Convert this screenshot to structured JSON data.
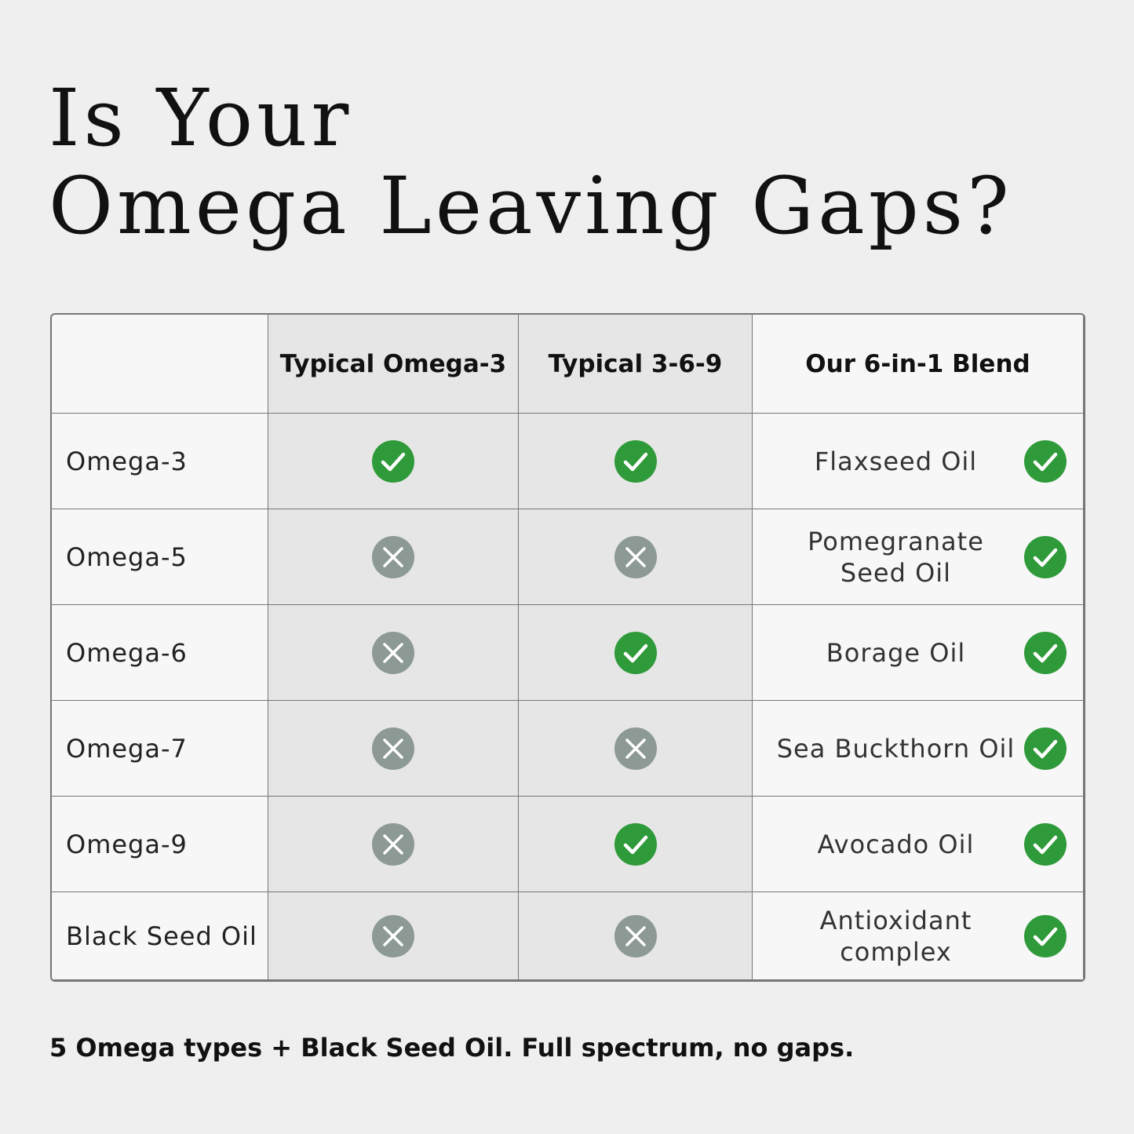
{
  "title": {
    "lines": [
      "Is Your",
      "Omega Leaving Gaps?"
    ]
  },
  "table": {
    "headers": [
      "Typical Omega-3",
      "Typical 3-6-9",
      "Our 6-in-1 Blend"
    ],
    "rows": [
      {
        "label": "Omega-3",
        "typical_omega3": true,
        "typical_369": true,
        "blend": [
          "Flaxseed Oil"
        ],
        "blend_included": true
      },
      {
        "label": "Omega-5",
        "typical_omega3": false,
        "typical_369": false,
        "blend": [
          "Pomegranate",
          "Seed Oil"
        ],
        "blend_included": true
      },
      {
        "label": "Omega-6",
        "typical_omega3": false,
        "typical_369": true,
        "blend": [
          "Borage Oil"
        ],
        "blend_included": true
      },
      {
        "label": "Omega-7",
        "typical_omega3": false,
        "typical_369": false,
        "blend": [
          "Sea Buckthorn Oil"
        ],
        "blend_included": true
      },
      {
        "label": "Omega-9",
        "typical_omega3": false,
        "typical_369": true,
        "blend": [
          "Avocado Oil"
        ],
        "blend_included": true
      },
      {
        "label": "Black Seed Oil",
        "typical_omega3": false,
        "typical_369": false,
        "blend": [
          "Antioxidant",
          "complex"
        ],
        "blend_included": true
      }
    ]
  },
  "footer": "5 Omega types + Black Seed Oil. Full spectrum, no gaps."
}
